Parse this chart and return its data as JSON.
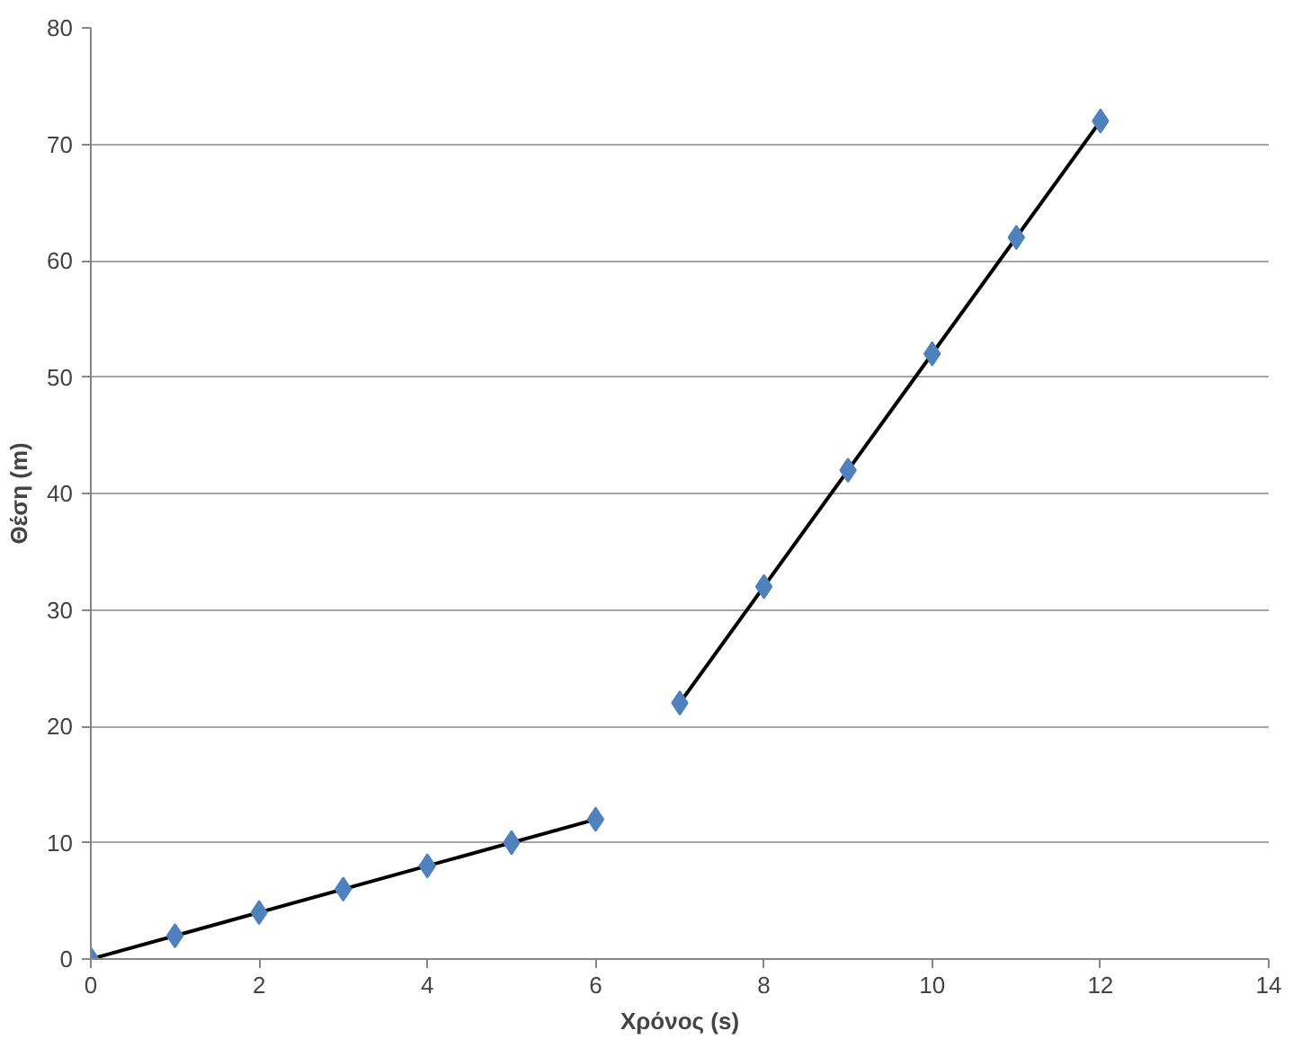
{
  "chart_data": {
    "type": "scatter",
    "xlabel": "Χρόνος (s)",
    "ylabel": "Θέση (m)",
    "xlim": [
      0,
      14
    ],
    "xticks": [
      0,
      2,
      4,
      6,
      8,
      10,
      12,
      14
    ],
    "ylim": [
      0,
      80
    ],
    "yticks": [
      0,
      10,
      20,
      30,
      40,
      50,
      60,
      70,
      80
    ],
    "grid": "y",
    "marker": "diamond",
    "series": [
      {
        "type": "line",
        "color": "#000000",
        "x": [
          0,
          6
        ],
        "values": [
          0,
          12
        ],
        "marker": "none",
        "line_style": "solid"
      },
      {
        "type": "line",
        "color": "#000000",
        "x": [
          7,
          12
        ],
        "values": [
          22,
          72
        ],
        "marker": "none",
        "line_style": "solid"
      },
      {
        "color": "#4f81bd",
        "x": [
          0,
          1,
          2,
          3,
          4,
          5,
          6,
          7,
          8,
          9,
          10,
          11,
          12
        ],
        "values": [
          0,
          2,
          4,
          6,
          8,
          10,
          12,
          22,
          32,
          42,
          52,
          62,
          72
        ]
      }
    ]
  }
}
